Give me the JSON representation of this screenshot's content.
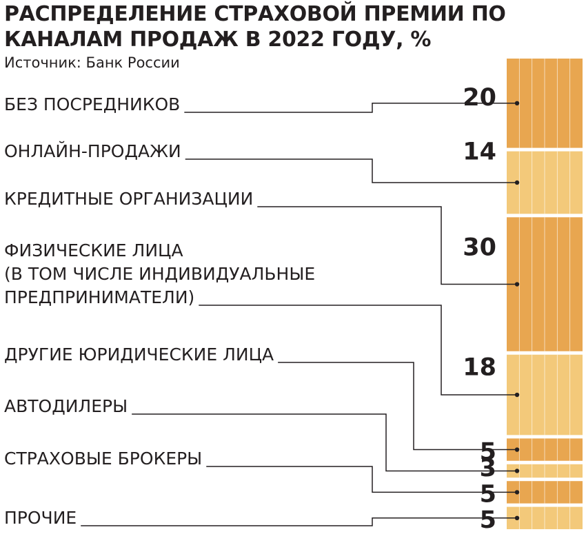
{
  "chart_data": {
    "type": "bar",
    "stacked": true,
    "title": "РАСПРЕДЕЛЕНИЕ СТРАХОВОЙ ПРЕМИИ ПО КАНАЛАМ ПРОДАЖ В 2022 ГОДУ, %",
    "source": "Источник: Банк России",
    "unit": "%",
    "categories": [
      "БЕЗ ПОСРЕДНИКОВ",
      "ОНЛАЙН-ПРОДАЖИ",
      "КРЕДИТНЫЕ ОРГАНИЗАЦИИ",
      "ФИЗИЧЕСКИЕ ЛИЦА (В ТОМ ЧИСЛЕ ИНДИВИДУАЛЬНЫЕ ПРЕДПРИНИМАТЕЛИ)",
      "ДРУГИЕ ЮРИДИЧЕСКИЕ ЛИЦА",
      "АВТОДИЛЕРЫ",
      "СТРАХОВЫЕ БРОКЕРЫ",
      "ПРОЧИЕ"
    ],
    "label_lines": [
      [
        "БЕЗ ПОСРЕДНИКОВ"
      ],
      [
        "ОНЛАЙН-ПРОДАЖИ"
      ],
      [
        "КРЕДИТНЫЕ ОРГАНИЗАЦИИ"
      ],
      [
        "ФИЗИЧЕСКИЕ ЛИЦА",
        "(В ТОМ ЧИСЛЕ ИНДИВИДУАЛЬНЫЕ",
        "ПРЕДПРИНИМАТЕЛИ)"
      ],
      [
        "ДРУГИЕ ЮРИДИЧЕСКИЕ ЛИЦА"
      ],
      [
        "АВТОДИЛЕРЫ"
      ],
      [
        "СТРАХОВЫЕ БРОКЕРЫ"
      ],
      [
        "ПРОЧИЕ"
      ]
    ],
    "values": [
      20,
      14,
      30,
      18,
      5,
      3,
      5,
      5
    ],
    "colors": {
      "dark": "#e8a650",
      "light": "#f3c97a",
      "text": "#231f20",
      "stripe": "#ffffff"
    },
    "segment_shades": [
      "dark",
      "light",
      "dark",
      "light",
      "dark",
      "light",
      "dark",
      "light"
    ]
  }
}
